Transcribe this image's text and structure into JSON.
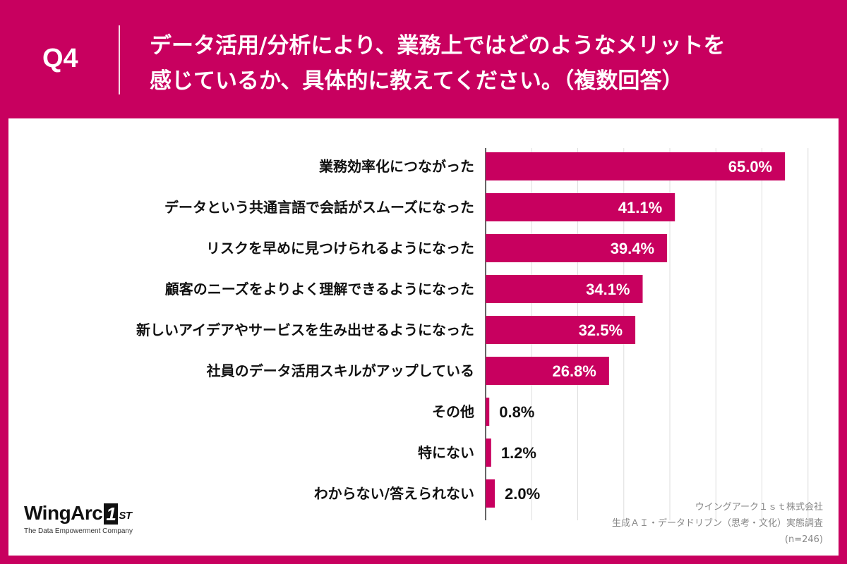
{
  "header": {
    "qnum": "Q4",
    "title": "データ活用/分析により、業務上ではどのようなメリットを\n感じているか、具体的に教えてください。（複数回答）"
  },
  "chart_data": {
    "type": "bar",
    "orientation": "horizontal",
    "xlim": [
      0,
      80
    ],
    "grid": true,
    "categories": [
      "業務効率化につながった",
      "データという共通言語で会話がスムーズになった",
      "リスクを早めに見つけられるようになった",
      "顧客のニーズをよりよく理解できるようになった",
      "新しいアイデアやサービスを生み出せるようになった",
      "社員のデータ活用スキルがアップしている",
      "その他",
      "特にない",
      "わからない/答えられない"
    ],
    "values": [
      65.0,
      41.1,
      39.4,
      34.1,
      32.5,
      26.8,
      0.8,
      1.2,
      2.0
    ],
    "value_labels": [
      "65.0%",
      "41.1%",
      "39.4%",
      "34.1%",
      "32.5%",
      "26.8%",
      "0.8%",
      "1.2%",
      "2.0%"
    ],
    "bar_color": "#c8005f"
  },
  "footer": {
    "logo_word": "WingArc",
    "logo_one": "1",
    "logo_st": "ST",
    "logo_tagline": "The Data Empowerment Company",
    "source_company": "ウイングアーク１ｓｔ株式会社",
    "source_survey": "生成ＡＩ・データドリブン（思考・文化）実態調査",
    "source_n": "(n=246)"
  }
}
